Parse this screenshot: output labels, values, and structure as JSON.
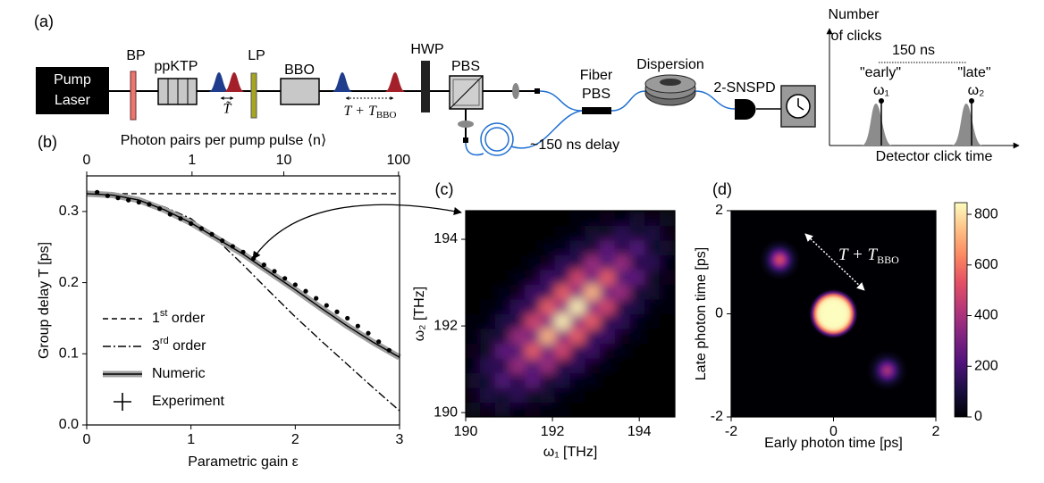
{
  "panel_a": {
    "label": "(a)",
    "pump_laser": [
      "Pump",
      "Laser"
    ],
    "bp": "BP",
    "ppktp": "ppKTP",
    "lp": "LP",
    "bbo": "BBO",
    "hwp": "HWP",
    "pbs": "PBS",
    "fiber_pbs": [
      "Fiber",
      "PBS"
    ],
    "dispersion": "Dispersion",
    "detector": "2-SNSPD",
    "delay_line": "~150 ns delay",
    "pulse_delay": "T̃",
    "total_delay": {
      "main": "T + T",
      "sub": "BBO"
    },
    "inset": {
      "ylabel": [
        "Number",
        "of clicks"
      ],
      "xlabel": "Detector click time",
      "separation": "150 ns",
      "early": [
        "\"early\"",
        "ω₁"
      ],
      "late": [
        "\"late\"",
        "ω₂"
      ]
    }
  },
  "chart_data": [
    {
      "type": "line",
      "panel_label": "(b)",
      "xlabel": "Parametric gain ε",
      "ylabel": "Group delay T [ps]",
      "top_xlabel": "Photon pairs per pump pulse ⟨n⟩",
      "xlim": [
        0,
        3
      ],
      "xticks": [
        0,
        1,
        2,
        3
      ],
      "top_xticks": [
        {
          "value": 0,
          "label": "0"
        },
        {
          "value": 1.01,
          "label": "1"
        },
        {
          "value": 1.89,
          "label": "10"
        },
        {
          "value": 2.99,
          "label": "100"
        }
      ],
      "ylim": [
        0,
        0.35
      ],
      "yticks": [
        {
          "value": 0,
          "label": "0.0"
        },
        0.1,
        0.2,
        0.3
      ],
      "legend": "lower left",
      "series": [
        {
          "name": "1st order",
          "style": "dashed",
          "color": "#000000",
          "x": [
            0,
            3
          ],
          "values": [
            0.325,
            0.325
          ]
        },
        {
          "name": "3rd order",
          "style": "dashdot",
          "color": "#000000",
          "x": [
            0,
            0.25,
            0.5,
            0.75,
            1,
            1.25,
            1.5,
            1.75,
            2,
            2.25,
            2.5,
            2.75,
            3
          ],
          "values": [
            0.325,
            0.323,
            0.318,
            0.306,
            0.29,
            0.26,
            0.225,
            0.188,
            0.152,
            0.118,
            0.085,
            0.052,
            0.02
          ]
        },
        {
          "name": "Numeric",
          "style": "band",
          "color": "#000000",
          "band_color": "#a0a0a0",
          "x": [
            0,
            0.25,
            0.5,
            0.75,
            1,
            1.25,
            1.5,
            1.75,
            2,
            2.25,
            2.5,
            2.75,
            3
          ],
          "values": [
            0.325,
            0.323,
            0.316,
            0.302,
            0.284,
            0.262,
            0.24,
            0.215,
            0.19,
            0.164,
            0.139,
            0.116,
            0.095
          ]
        },
        {
          "name": "Experiment",
          "style": "markers",
          "color": "#000000",
          "x": [
            0.1,
            0.2,
            0.3,
            0.4,
            0.5,
            0.6,
            0.7,
            0.8,
            0.9,
            1.0,
            1.1,
            1.2,
            1.3,
            1.4,
            1.5,
            1.6,
            1.7,
            1.8,
            1.9,
            2.0,
            2.1,
            2.2,
            2.3,
            2.4,
            2.5,
            2.6,
            2.7,
            2.8,
            2.9
          ],
          "values": [
            0.327,
            0.322,
            0.319,
            0.316,
            0.313,
            0.31,
            0.304,
            0.296,
            0.29,
            0.283,
            0.276,
            0.268,
            0.259,
            0.251,
            0.243,
            0.234,
            0.225,
            0.216,
            0.206,
            0.197,
            0.188,
            0.178,
            0.168,
            0.159,
            0.15,
            0.139,
            0.129,
            0.117,
            0.105
          ]
        }
      ]
    },
    {
      "type": "heatmap",
      "panel_label": "(c)",
      "xlabel": "ω₁ [THz]",
      "ylabel": "ω₂ [THz]",
      "xlim": [
        190,
        194.82
      ],
      "xticks": [
        190,
        192,
        194
      ],
      "ylim": [
        189.9,
        194.66
      ],
      "yticks": [
        190,
        192,
        194
      ],
      "colormap": "magma",
      "zlim": [
        0,
        1
      ],
      "z": [
        [
          0.06,
          0.04,
          0.09,
          0.03,
          0.05,
          0.01,
          0.01,
          0,
          0,
          0,
          0,
          0,
          0,
          0
        ],
        [
          0.04,
          0.13,
          0.08,
          0.17,
          0.06,
          0.09,
          0.02,
          0.02,
          0,
          0,
          0,
          0,
          0,
          0
        ],
        [
          0.09,
          0.08,
          0.26,
          0.14,
          0.29,
          0.1,
          0.13,
          0.03,
          0.03,
          0,
          0,
          0,
          0,
          0
        ],
        [
          0.03,
          0.17,
          0.14,
          0.44,
          0.23,
          0.44,
          0.14,
          0.17,
          0.04,
          0.03,
          0,
          0,
          0,
          0
        ],
        [
          0.05,
          0.06,
          0.29,
          0.23,
          0.66,
          0.32,
          0.58,
          0.17,
          0.2,
          0.04,
          0.03,
          0,
          0,
          0
        ],
        [
          0.01,
          0.09,
          0.1,
          0.44,
          0.32,
          0.86,
          0.39,
          0.66,
          0.18,
          0.2,
          0.04,
          0.03,
          0,
          0
        ],
        [
          0.01,
          0.02,
          0.13,
          0.14,
          0.58,
          0.39,
          0.98,
          0.41,
          0.66,
          0.17,
          0.17,
          0.03,
          0.02,
          0
        ],
        [
          0,
          0.02,
          0.03,
          0.17,
          0.17,
          0.66,
          0.41,
          0.98,
          0.39,
          0.58,
          0.14,
          0.13,
          0.02,
          0.01
        ],
        [
          0,
          0,
          0.03,
          0.04,
          0.2,
          0.18,
          0.66,
          0.39,
          0.86,
          0.32,
          0.44,
          0.1,
          0.09,
          0.01
        ],
        [
          0,
          0,
          0,
          0.03,
          0.04,
          0.2,
          0.17,
          0.58,
          0.32,
          0.66,
          0.23,
          0.29,
          0.06,
          0.05
        ],
        [
          0,
          0,
          0,
          0,
          0.03,
          0.04,
          0.17,
          0.14,
          0.44,
          0.23,
          0.44,
          0.14,
          0.17,
          0.03
        ],
        [
          0,
          0,
          0,
          0,
          0,
          0.03,
          0.03,
          0.13,
          0.1,
          0.29,
          0.14,
          0.26,
          0.08,
          0.09
        ],
        [
          0,
          0,
          0,
          0,
          0,
          0,
          0.02,
          0.02,
          0.09,
          0.06,
          0.17,
          0.08,
          0.13,
          0.04
        ],
        [
          0,
          0,
          0,
          0,
          0,
          0,
          0,
          0.01,
          0.01,
          0.05,
          0.03,
          0.09,
          0.04,
          0.06
        ]
      ]
    },
    {
      "type": "peaks",
      "panel_label": "(d)",
      "xlabel": "Early photon time [ps]",
      "ylabel": "Late photon time [ps]",
      "xlim": [
        -2,
        2
      ],
      "xticks": [
        -2,
        0,
        2
      ],
      "ylim": [
        -2,
        2
      ],
      "yticks": [
        -2,
        0,
        2
      ],
      "colormap": "magma",
      "zlim": [
        0,
        846
      ],
      "colorbar_ticks": [
        0,
        200,
        400,
        600,
        800
      ],
      "peaks": [
        {
          "x": 0,
          "y": 0,
          "value": 846,
          "radius": 0.52,
          "profile": "flat"
        },
        {
          "x": -1.05,
          "y": 1.05,
          "value": 480,
          "radius": 0.4,
          "profile": "gaussian"
        },
        {
          "x": 1.05,
          "y": -1.1,
          "value": 380,
          "radius": 0.4,
          "profile": "gaussian"
        }
      ],
      "annotation": {
        "main": "T + T",
        "sub": "BBO"
      }
    }
  ]
}
